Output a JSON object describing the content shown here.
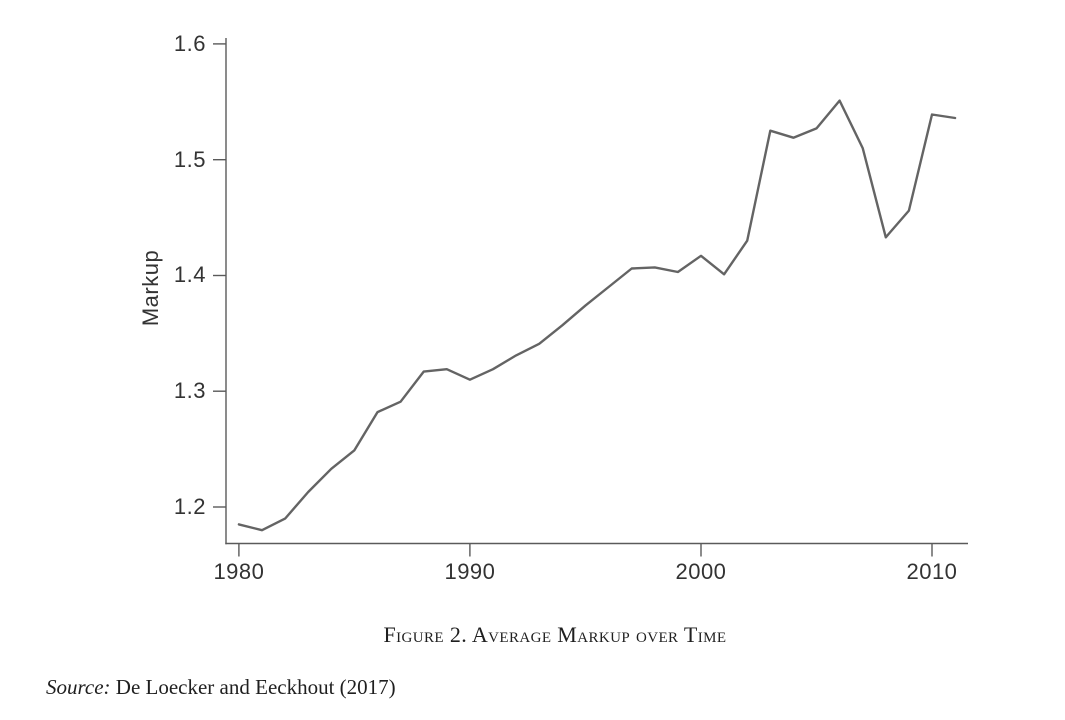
{
  "figure": {
    "caption": "Figure 2. Average Markup over Time",
    "source_label": "Source:",
    "source_text": "De Loecker and Eeckhout (2017)"
  },
  "chart_data": {
    "type": "line",
    "title": "Figure 2. Average Markup over Time",
    "xlabel": "",
    "ylabel": "Markup",
    "x": [
      1980,
      1981,
      1982,
      1983,
      1984,
      1985,
      1986,
      1987,
      1988,
      1989,
      1990,
      1991,
      1992,
      1993,
      1994,
      1995,
      1996,
      1997,
      1998,
      1999,
      2000,
      2001,
      2002,
      2003,
      2004,
      2005,
      2006,
      2007,
      2008,
      2009,
      2010,
      2011
    ],
    "series": [
      {
        "name": "Average markup",
        "values": [
          1.185,
          1.18,
          1.19,
          1.213,
          1.233,
          1.249,
          1.282,
          1.291,
          1.317,
          1.319,
          1.31,
          1.319,
          1.331,
          1.341,
          1.357,
          1.374,
          1.39,
          1.406,
          1.407,
          1.403,
          1.417,
          1.401,
          1.43,
          1.525,
          1.519,
          1.527,
          1.551,
          1.51,
          1.433,
          1.456,
          1.539,
          1.536
        ]
      }
    ],
    "x_ticks": [
      1980,
      1990,
      2000,
      2010
    ],
    "y_ticks": [
      1.2,
      1.3,
      1.4,
      1.5,
      1.6
    ],
    "xlim": [
      1979.44,
      2011.56
    ],
    "ylim": [
      1.1685,
      1.6051
    ],
    "grid": false,
    "legend": "none",
    "line_color": "#646464",
    "axis_color": "#5a5a5a",
    "text_color": "#333333"
  }
}
